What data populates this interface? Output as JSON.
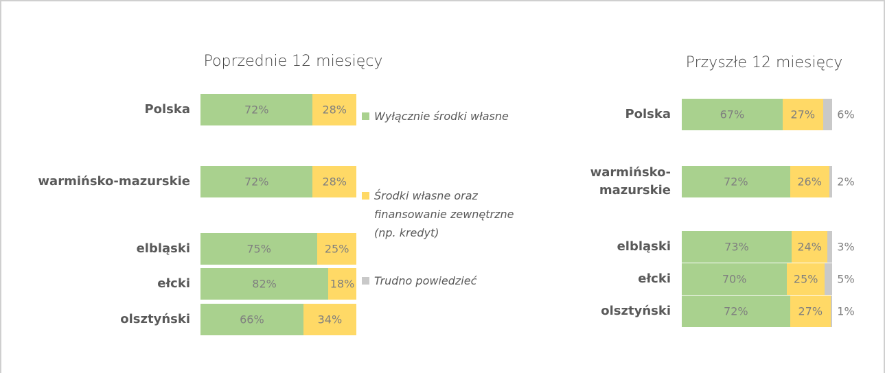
{
  "chart_data": [
    {
      "type": "stacked-bar-horizontal",
      "title": "Poprzednie 12 miesięcy",
      "categories": [
        "Polska",
        "warmińsko-mazurskie",
        "elbląski",
        "ełcki",
        "olsztyński"
      ],
      "xlim": [
        0,
        100
      ],
      "series": [
        {
          "color": "#a9d18e",
          "values": [
            72,
            72,
            75,
            82,
            66
          ],
          "value_labels": [
            "72%",
            "72%",
            "75%",
            "82%",
            "66%"
          ]
        },
        {
          "color": "#ffd966",
          "values": [
            28,
            28,
            25,
            18,
            34
          ],
          "value_labels": [
            "28%",
            "28%",
            "25%",
            "18%",
            "34%"
          ]
        }
      ]
    },
    {
      "type": "stacked-bar-horizontal",
      "title": "Przyszłe 12 miesięcy",
      "categories": [
        "Polska",
        "warmińsko-mazurskie",
        "elbląski",
        "ełcki",
        "olsztyński"
      ],
      "xlim": [
        0,
        100
      ],
      "series": [
        {
          "name": "Wyłącznie środki własne",
          "color": "#a9d18e",
          "values": [
            67,
            72,
            73,
            70,
            72
          ],
          "value_labels": [
            "67%",
            "72%",
            "73%",
            "70%",
            "72%"
          ]
        },
        {
          "name": "Środki własne oraz finansowanie zewnętrzne (np. kredyt)",
          "color": "#ffd966",
          "values": [
            27,
            26,
            24,
            25,
            27
          ],
          "value_labels": [
            "27%",
            "26%",
            "24%",
            "25%",
            "27%"
          ]
        },
        {
          "name": "Trudno powiedzieć",
          "color": "#c9c9c9",
          "values": [
            6,
            2,
            3,
            5,
            1
          ],
          "value_labels": [
            "6%",
            "2%",
            "3%",
            "5%",
            "1%"
          ]
        }
      ]
    }
  ]
}
